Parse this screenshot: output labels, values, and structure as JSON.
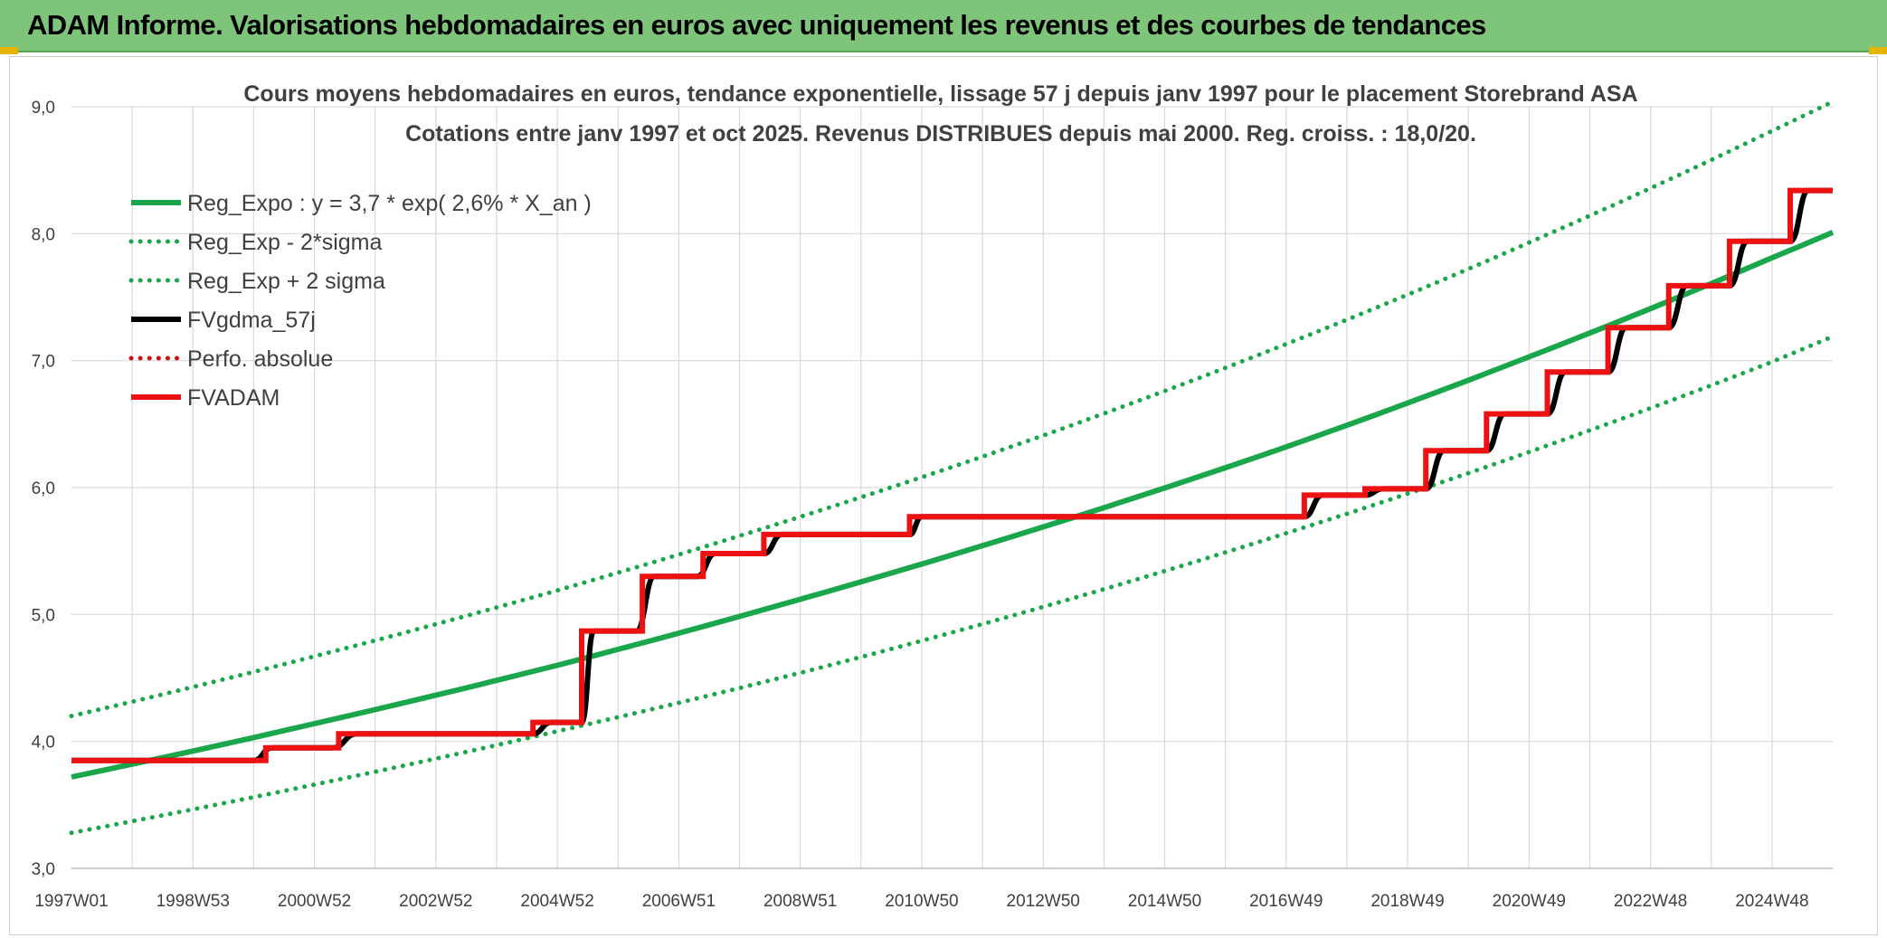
{
  "header": {
    "title": "ADAM Informe. Valorisations hebdomadaires en euros avec uniquement les revenus et des courbes de tendances"
  },
  "colors": {
    "banner": "#7ec47a",
    "trend": "#1aa64a",
    "smoothed": "#000000",
    "adam": "#ee1111",
    "absolute": "#cc1111",
    "grid": "#d9d9d9"
  },
  "chart_data": {
    "type": "line",
    "title": "Cours moyens hebdomadaires en euros, tendance exponentielle, lissage 57 j depuis janv 1997 pour le placement Storebrand ASA",
    "subtitle": "Cotations entre janv 1997 et oct 2025. Revenus DISTRIBUES depuis mai 2000. Reg. croiss. : 18,0/20.",
    "x_range": [
      1997.0,
      2026.0
    ],
    "ylim": [
      3.0,
      9.0
    ],
    "y_ticks": [
      3.0,
      4.0,
      5.0,
      6.0,
      7.0,
      8.0,
      9.0
    ],
    "y_tick_labels": [
      "3,0",
      "4,0",
      "5,0",
      "6,0",
      "7,0",
      "8,0",
      "9,0"
    ],
    "x_ticks": [
      1997.0,
      1999.0,
      2001.0,
      2003.0,
      2005.0,
      2007.0,
      2009.0,
      2011.0,
      2013.0,
      2015.0,
      2017.0,
      2019.0,
      2021.0,
      2023.0,
      2025.0
    ],
    "x_tick_labels": [
      "1997W01",
      "1998W53",
      "2000W52",
      "2002W52",
      "2004W52",
      "2006W51",
      "2008W51",
      "2010W50",
      "2012W50",
      "2014W50",
      "2016W49",
      "2018W49",
      "2020W49",
      "2022W48",
      "2024W48"
    ],
    "grid": true,
    "legend_position": "top-left",
    "series": [
      {
        "name": "Reg_Expo : y = 3,7 * exp( 2,6% *  X_an )",
        "style": "solid-thick",
        "color": "#1aa64a",
        "x": [
          1997.0,
          2001.0,
          2005.0,
          2009.0,
          2013.0,
          2017.0,
          2021.0,
          2025.0,
          2026.0
        ],
        "y": [
          3.72,
          4.14,
          4.6,
          5.12,
          5.69,
          6.32,
          7.03,
          7.81,
          8.01
        ]
      },
      {
        "name": "Reg_Exp - 2*sigma",
        "style": "dotted",
        "color": "#1aa64a",
        "x": [
          1997.0,
          2001.0,
          2005.0,
          2009.0,
          2013.0,
          2017.0,
          2021.0,
          2025.0,
          2026.0
        ],
        "y": [
          3.28,
          3.66,
          4.08,
          4.54,
          5.06,
          5.64,
          6.28,
          6.99,
          7.19
        ]
      },
      {
        "name": "Reg_Exp + 2 sigma",
        "style": "dotted",
        "color": "#1aa64a",
        "x": [
          1997.0,
          2001.0,
          2005.0,
          2009.0,
          2013.0,
          2017.0,
          2021.0,
          2025.0,
          2026.0
        ],
        "y": [
          4.2,
          4.67,
          5.19,
          5.77,
          6.41,
          7.13,
          7.93,
          8.81,
          9.04
        ]
      },
      {
        "name": "FVgdma_57j",
        "style": "smooth-steps",
        "color": "#000000",
        "x": [
          1997.0,
          2000.0,
          2000.3,
          2001.3,
          2001.7,
          2004.6,
          2004.9,
          2005.4,
          2005.6,
          2006.3,
          2006.6,
          2007.3,
          2007.6,
          2008.4,
          2008.7,
          2010.8,
          2011.0,
          2017.3,
          2017.6,
          2018.3,
          2018.6,
          2019.3,
          2019.6,
          2020.3,
          2020.6,
          2021.3,
          2021.6,
          2022.3,
          2022.6,
          2023.3,
          2023.6,
          2024.3,
          2024.6,
          2025.3,
          2025.6,
          2026.0
        ],
        "y": [
          3.85,
          3.85,
          3.95,
          3.95,
          4.06,
          4.06,
          4.15,
          4.15,
          4.87,
          4.87,
          5.3,
          5.3,
          5.48,
          5.48,
          5.63,
          5.63,
          5.77,
          5.77,
          5.94,
          5.94,
          5.99,
          5.99,
          6.29,
          6.29,
          6.58,
          6.58,
          6.91,
          6.91,
          7.26,
          7.26,
          7.59,
          7.59,
          7.94,
          7.94,
          8.34,
          8.34
        ]
      },
      {
        "name": "Perfo. absolue",
        "style": "dotted",
        "color": "#cc1111",
        "x": [],
        "y": []
      },
      {
        "name": "FVADAM",
        "style": "steps-thick",
        "color": "#ee1111",
        "x": [
          1997.0,
          2000.2,
          2000.2,
          2001.4,
          2001.4,
          2004.6,
          2004.6,
          2005.4,
          2005.4,
          2006.4,
          2006.4,
          2007.4,
          2007.4,
          2008.4,
          2008.4,
          2010.8,
          2010.8,
          2017.3,
          2017.3,
          2018.3,
          2018.3,
          2019.3,
          2019.3,
          2020.3,
          2020.3,
          2021.3,
          2021.3,
          2022.3,
          2022.3,
          2023.3,
          2023.3,
          2024.3,
          2024.3,
          2025.3,
          2025.3,
          2026.0
        ],
        "y": [
          3.85,
          3.85,
          3.95,
          3.95,
          4.06,
          4.06,
          4.15,
          4.15,
          4.87,
          4.87,
          5.3,
          5.3,
          5.48,
          5.48,
          5.63,
          5.63,
          5.77,
          5.77,
          5.94,
          5.94,
          5.99,
          5.99,
          6.29,
          6.29,
          6.58,
          6.58,
          6.91,
          6.91,
          7.26,
          7.26,
          7.59,
          7.59,
          7.94,
          7.94,
          8.34,
          8.34
        ]
      }
    ]
  }
}
